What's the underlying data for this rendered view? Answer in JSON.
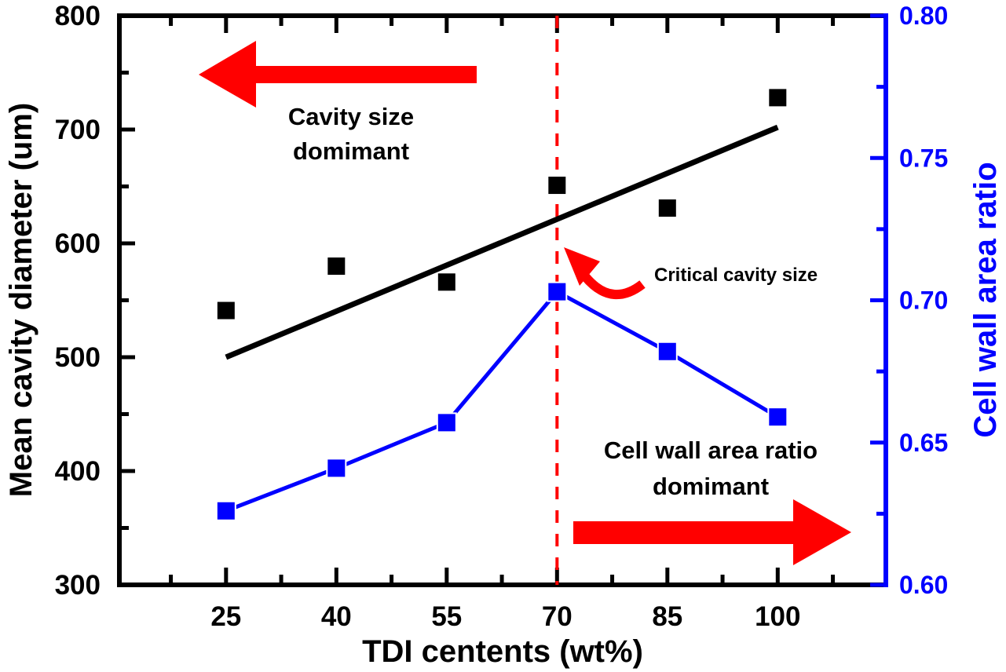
{
  "chart_data": {
    "type": "scatter",
    "title": "",
    "xlabel": "TDI centents (wt%)",
    "ylabel_left": "Mean cavity diameter (um)",
    "ylabel_right": "Cell wall area ratio",
    "xlim": [
      10.5,
      114.7
    ],
    "ylim_left": [
      300,
      800
    ],
    "ylim_right": [
      0.6,
      0.8
    ],
    "x_ticks": [
      25,
      40,
      55,
      70,
      85,
      100
    ],
    "x_tick_labels": [
      "25",
      "40",
      "55",
      "70",
      "85",
      "100"
    ],
    "y_left_ticks": [
      300,
      400,
      500,
      600,
      700,
      800
    ],
    "y_left_tick_labels": [
      "300",
      "400",
      "500",
      "600",
      "700",
      "800"
    ],
    "y_right_ticks": [
      0.6,
      0.65,
      0.7,
      0.75,
      0.8
    ],
    "y_right_tick_labels": [
      "0.60",
      "0.65",
      "0.70",
      "0.75",
      "0.80"
    ],
    "grid": false,
    "series": [
      {
        "name": "Mean cavity diameter",
        "axis": "left",
        "color": "#000000",
        "marker": "square",
        "line": false,
        "x": [
          25,
          40,
          55,
          70,
          85,
          100
        ],
        "values": [
          541,
          580,
          566,
          651,
          631,
          728
        ]
      },
      {
        "name": "Linear fit of mean cavity diameter",
        "axis": "left",
        "color": "#000000",
        "marker": "none",
        "line": true,
        "x": [
          25,
          100
        ],
        "values": [
          500,
          702
        ]
      },
      {
        "name": "Cell wall area ratio",
        "axis": "right",
        "color": "#0000ff",
        "marker": "square",
        "line": true,
        "x": [
          25,
          40,
          55,
          70,
          85,
          100
        ],
        "values": [
          0.626,
          0.641,
          0.657,
          0.703,
          0.682,
          0.659
        ]
      }
    ],
    "reference_line": {
      "orientation": "vertical",
      "x": 70,
      "style": "dashed",
      "color": "#ff0000"
    },
    "annotations": [
      {
        "text_lines": [
          "Cavity size",
          "domimant"
        ],
        "arrow": "left",
        "color": "#ff0000"
      },
      {
        "text_lines": [
          "Cell wall area ratio",
          "domimant"
        ],
        "arrow": "right",
        "color": "#ff0000"
      },
      {
        "text_lines": [
          "Critical cavity size"
        ],
        "arrow": "curved-pointing-to-x-70"
      }
    ]
  },
  "colors": {
    "left_axis": "#000000",
    "right_axis": "#0000ff",
    "accent": "#ff0000"
  }
}
